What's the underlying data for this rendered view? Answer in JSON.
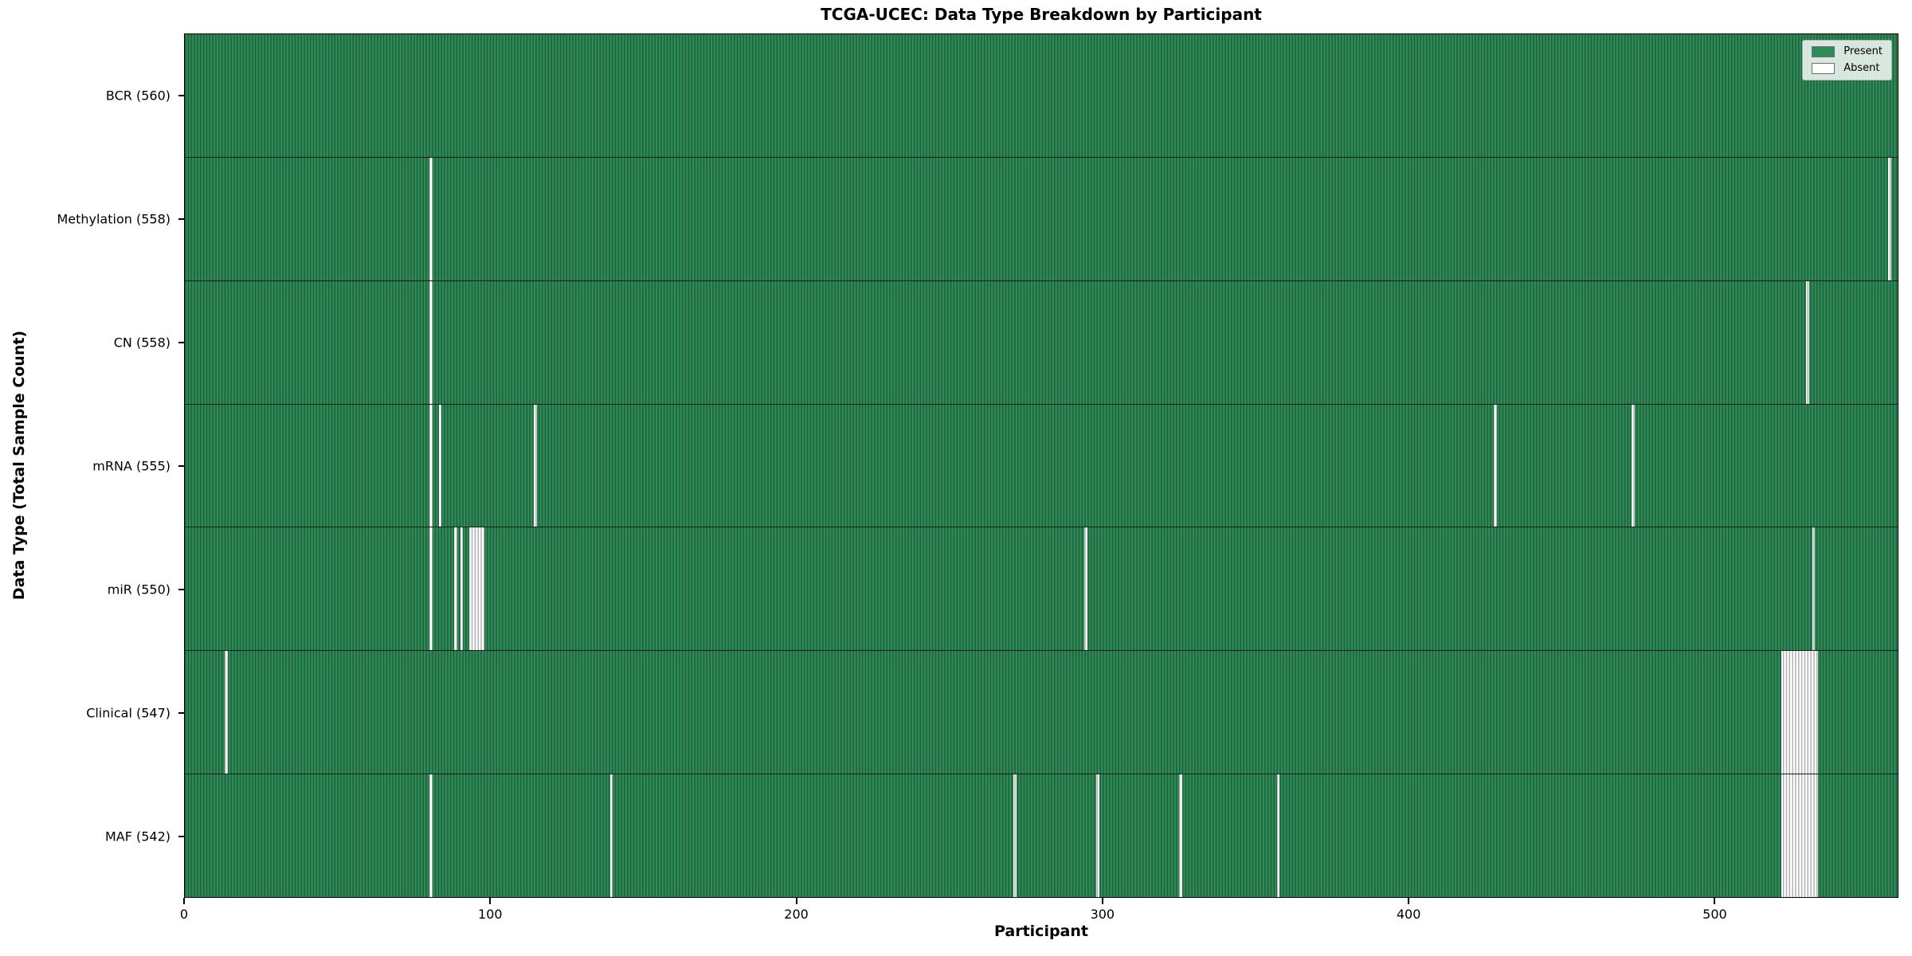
{
  "figure": {
    "title": "TCGA-UCEC: Data Type Breakdown by Participant",
    "xlabel": "Participant",
    "ylabel": "Data Type (Total Sample Count)"
  },
  "legend": {
    "items": [
      {
        "label": "Present",
        "color": "#2e8b57"
      },
      {
        "label": "Absent",
        "color": "#ffffff"
      }
    ]
  },
  "chart_data": {
    "type": "heatmap",
    "title": "TCGA-UCEC: Data Type Breakdown by Participant",
    "xlabel": "Participant",
    "ylabel": "Data Type (Total Sample Count)",
    "legend_position": "upper right",
    "present_color": "#2e8b57",
    "absent_color": "#ffffff",
    "n_participants": 560,
    "xlim": [
      0,
      560
    ],
    "x_ticks": [
      0,
      100,
      200,
      300,
      400,
      500
    ],
    "rows": [
      {
        "name": "BCR",
        "label": "BCR (560)",
        "present_count": 560,
        "absent_ranges": []
      },
      {
        "name": "Methylation",
        "label": "Methylation (558)",
        "present_count": 558,
        "absent_ranges": [
          [
            80,
            80
          ],
          [
            557,
            557
          ]
        ]
      },
      {
        "name": "CN",
        "label": "CN (558)",
        "present_count": 558,
        "absent_ranges": [
          [
            80,
            80
          ],
          [
            530,
            530
          ]
        ]
      },
      {
        "name": "mRNA",
        "label": "mRNA (555)",
        "present_count": 555,
        "absent_ranges": [
          [
            80,
            80
          ],
          [
            83,
            83
          ],
          [
            114,
            114
          ],
          [
            428,
            428
          ],
          [
            473,
            473
          ]
        ]
      },
      {
        "name": "miR",
        "label": "miR (550)",
        "present_count": 550,
        "absent_ranges": [
          [
            80,
            80
          ],
          [
            88,
            88
          ],
          [
            90,
            90
          ],
          [
            93,
            97
          ],
          [
            294,
            294
          ],
          [
            532,
            532
          ]
        ]
      },
      {
        "name": "Clinical",
        "label": "Clinical (547)",
        "present_count": 547,
        "absent_ranges": [
          [
            13,
            13
          ],
          [
            522,
            533
          ]
        ]
      },
      {
        "name": "MAF",
        "label": "MAF (542)",
        "present_count": 542,
        "absent_ranges": [
          [
            80,
            80
          ],
          [
            139,
            139
          ],
          [
            271,
            271
          ],
          [
            298,
            298
          ],
          [
            325,
            325
          ],
          [
            357,
            357
          ],
          [
            522,
            533
          ]
        ]
      }
    ]
  }
}
